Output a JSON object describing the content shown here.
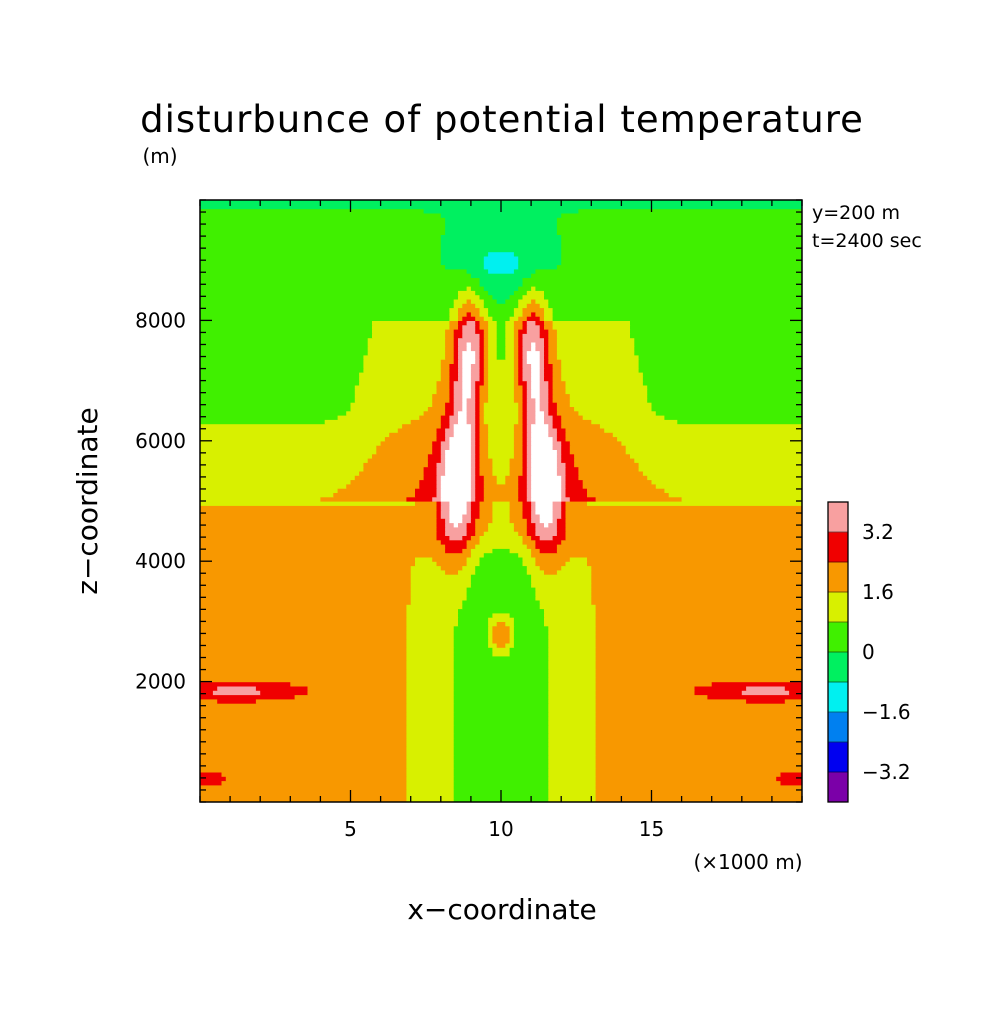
{
  "chart_data": {
    "type": "heatmap",
    "title": "disturbunce of potential temperature",
    "y_unit": "(m)",
    "xlabel": "x−coordinate",
    "ylabel": "z−coordinate",
    "x_unit": "(×1000 m)",
    "xlim": [
      0,
      20
    ],
    "ylim": [
      0,
      10000
    ],
    "x_ticks": [
      5,
      10,
      15
    ],
    "y_ticks": [
      2000,
      4000,
      6000,
      8000
    ],
    "annotations": [
      "y=200 m",
      "t=2400 sec"
    ],
    "colorbar": {
      "levels": [
        -4.0,
        -3.2,
        -2.4,
        -1.6,
        -0.8,
        0,
        0.8,
        1.6,
        2.4,
        3.2,
        4.0
      ],
      "labels": [
        "3.2",
        "1.6",
        "0",
        "−1.6",
        "−3.2"
      ],
      "colors": [
        "#7b00a8",
        "#0000f0",
        "#0080f0",
        "#00f0f0",
        "#00f060",
        "#40f000",
        "#d8f000",
        "#f89800",
        "#f00000",
        "#f8a0a0"
      ],
      "above_max_color": "#ffffff"
    }
  }
}
